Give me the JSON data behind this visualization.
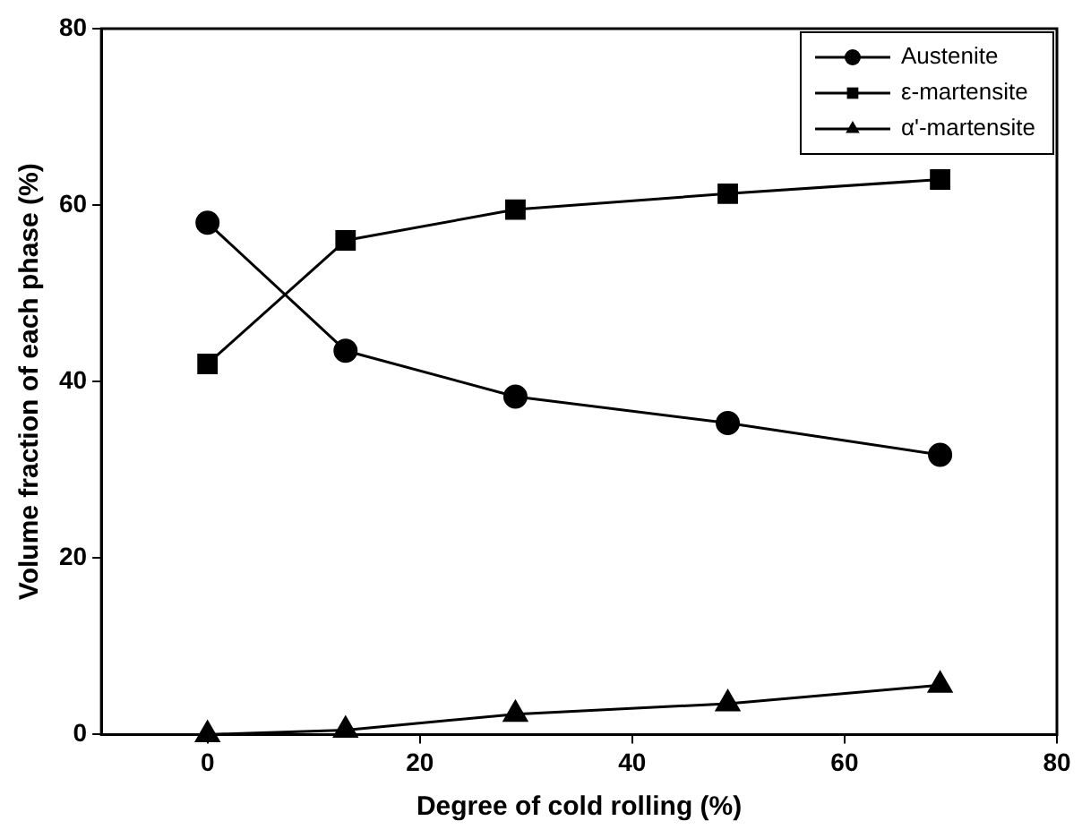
{
  "chart_data": {
    "type": "line",
    "xlabel": "Degree of cold rolling (%)",
    "ylabel": "Volume fraction of each phase (%)",
    "x": [
      0,
      13,
      29,
      49,
      69
    ],
    "series": [
      {
        "name": "Austenite",
        "color": "#000000",
        "marker": "circle",
        "values": [
          58,
          43.5,
          38.3,
          35.3,
          31.7
        ]
      },
      {
        "name": "ε-martensite",
        "color": "#000000",
        "marker": "square",
        "values": [
          42,
          56,
          59.5,
          61.3,
          62.9
        ]
      },
      {
        "name": "α'-martensite",
        "color": "#000000",
        "marker": "triangle",
        "values": [
          0,
          0.5,
          2.3,
          3.5,
          5.6
        ]
      }
    ],
    "xlim": [
      -10,
      80
    ],
    "xticks": [
      0,
      20,
      40,
      60,
      80
    ],
    "ylim": [
      0,
      80
    ],
    "yticks": [
      0,
      20,
      40,
      60,
      80
    ],
    "grid": false,
    "legend": "top right",
    "line_style": "solid"
  }
}
